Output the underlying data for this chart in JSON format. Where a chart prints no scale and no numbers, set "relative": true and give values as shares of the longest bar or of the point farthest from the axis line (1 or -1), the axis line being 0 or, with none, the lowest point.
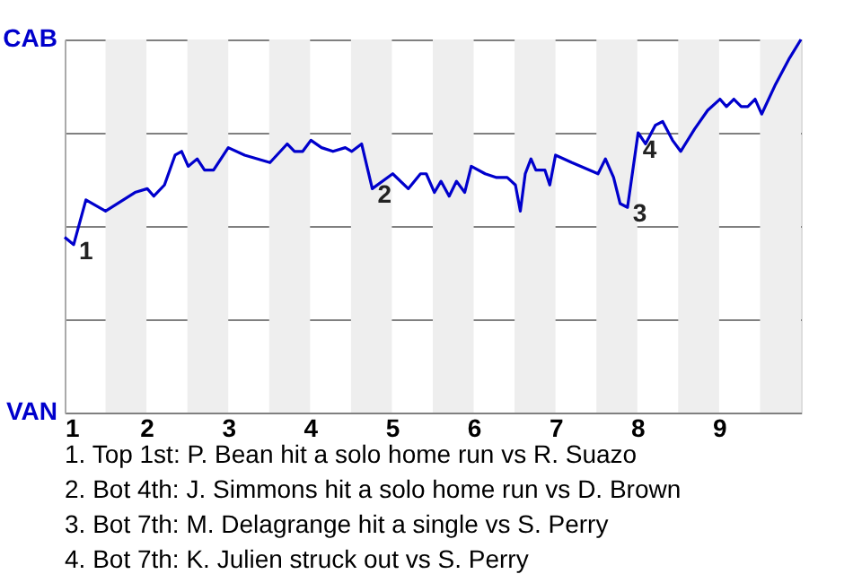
{
  "chart_data": {
    "type": "line",
    "relative": true,
    "x": [
      1.0,
      1.11,
      1.26,
      1.5,
      1.86,
      2.01,
      2.09,
      2.22,
      2.35,
      2.43,
      2.51,
      2.62,
      2.71,
      2.82,
      3.0,
      3.2,
      3.51,
      3.72,
      3.81,
      3.91,
      4.01,
      4.14,
      4.28,
      4.43,
      4.51,
      4.63,
      4.76,
      5.01,
      5.2,
      5.35,
      5.42,
      5.52,
      5.6,
      5.7,
      5.79,
      5.89,
      5.97,
      6.14,
      6.28,
      6.41,
      6.51,
      6.57,
      6.63,
      6.7,
      6.76,
      6.87,
      6.93,
      7.0,
      7.2,
      7.52,
      7.61,
      7.71,
      7.79,
      7.88,
      8.01,
      8.1,
      8.22,
      8.31,
      8.43,
      8.53,
      8.7,
      8.86,
      9.01,
      9.09,
      9.18,
      9.27,
      9.35,
      9.44,
      9.52,
      9.69,
      9.86,
      10
    ],
    "series": [
      {
        "color": "#0000cc",
        "values": [
          0.47,
          0.45,
          0.57,
          0.54,
          0.59,
          0.6,
          0.58,
          0.61,
          0.69,
          0.7,
          0.66,
          0.68,
          0.65,
          0.65,
          0.71,
          0.69,
          0.67,
          0.72,
          0.7,
          0.7,
          0.73,
          0.71,
          0.7,
          0.71,
          0.7,
          0.72,
          0.6,
          0.64,
          0.6,
          0.64,
          0.64,
          0.59,
          0.62,
          0.58,
          0.62,
          0.59,
          0.66,
          0.64,
          0.63,
          0.63,
          0.61,
          0.54,
          0.64,
          0.68,
          0.65,
          0.65,
          0.61,
          0.69,
          0.67,
          0.64,
          0.68,
          0.63,
          0.56,
          0.55,
          0.75,
          0.72,
          0.77,
          0.78,
          0.73,
          0.7,
          0.76,
          0.81,
          0.84,
          0.82,
          0.84,
          0.82,
          0.82,
          0.84,
          0.8,
          0.88,
          0.95,
          1
        ]
      }
    ],
    "xlim": [
      1,
      10
    ],
    "xticks": [
      1,
      2,
      3,
      4,
      5,
      6,
      7,
      8,
      9
    ],
    "grid": "y",
    "marker": "none",
    "line_style": "solid",
    "bands": [
      {
        "axis": "x",
        "from": 1.5,
        "to": 2,
        "color": "#eeeeee"
      },
      {
        "axis": "x",
        "from": 2.5,
        "to": 3,
        "color": "#eeeeee"
      },
      {
        "axis": "x",
        "from": 3.5,
        "to": 4,
        "color": "#eeeeee"
      },
      {
        "axis": "x",
        "from": 4.5,
        "to": 5,
        "color": "#eeeeee"
      },
      {
        "axis": "x",
        "from": 5.5,
        "to": 6,
        "color": "#eeeeee"
      },
      {
        "axis": "x",
        "from": 6.5,
        "to": 7,
        "color": "#eeeeee"
      },
      {
        "axis": "x",
        "from": 7.5,
        "to": 8,
        "color": "#eeeeee"
      },
      {
        "axis": "x",
        "from": 8.5,
        "to": 9,
        "color": "#eeeeee"
      },
      {
        "axis": "x",
        "from": 9.5,
        "to": 10,
        "color": "#eeeeee"
      }
    ],
    "annotations": [
      "CAB",
      "VAN",
      {
        "text": "1",
        "x": 1.11,
        "y": 0.45
      },
      {
        "text": "2",
        "x": 4.76,
        "y": 0.6
      },
      {
        "text": "3",
        "x": 7.88,
        "y": 0.55
      },
      {
        "text": "4",
        "x": 8.0,
        "y": 0.72
      },
      "1. Top 1st: P. Bean hit a solo home run vs R. Suazo",
      "2. Bot 4th: J. Simmons hit a solo home run vs D. Brown",
      "3. Bot 7th: M. Delagrange hit a single vs S. Perry",
      "4. Bot 7th: K. Julien struck out vs S. Perry"
    ]
  }
}
